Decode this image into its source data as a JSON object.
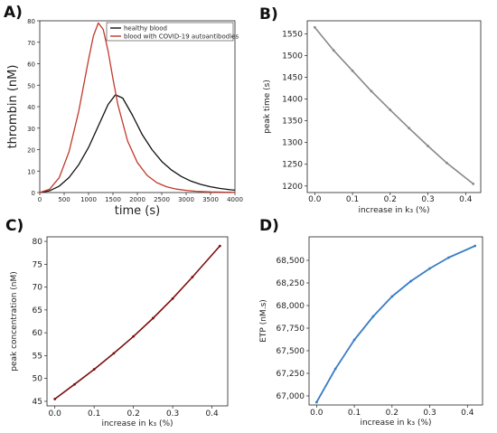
{
  "chart_data": [
    {
      "panel": "A)",
      "type": "line",
      "xlabel": "time (s)",
      "ylabel": "thrombin (nM)",
      "xlim": [
        0,
        4000
      ],
      "ylim": [
        0,
        80
      ],
      "xticks": [
        0,
        500,
        1000,
        1500,
        2000,
        2500,
        3000,
        3500,
        4000
      ],
      "yticks": [
        0,
        10,
        20,
        30,
        40,
        50,
        60,
        70,
        80
      ],
      "legend_position": "top-right",
      "series": [
        {
          "name": "healthy blood",
          "color": "#111111",
          "x": [
            0,
            200,
            400,
            600,
            800,
            1000,
            1200,
            1400,
            1550,
            1700,
            1900,
            2100,
            2300,
            2500,
            2700,
            2900,
            3100,
            3300,
            3500,
            3700,
            3900,
            4000
          ],
          "y": [
            0,
            0.8,
            3,
            7,
            13,
            21,
            31,
            41,
            45.5,
            44,
            36,
            27,
            20,
            14.5,
            10.5,
            7.5,
            5.3,
            3.8,
            2.7,
            1.9,
            1.3,
            1.1
          ]
        },
        {
          "name": "blood with COVID-19 autoantibodies",
          "color": "#c0392b",
          "x": [
            0,
            200,
            400,
            600,
            800,
            1000,
            1100,
            1200,
            1300,
            1400,
            1500,
            1600,
            1800,
            2000,
            2200,
            2400,
            2600,
            2800,
            3000,
            3200,
            3500,
            3800,
            4000
          ],
          "y": [
            0,
            1.5,
            7,
            19,
            38,
            62,
            73,
            79,
            76,
            66,
            53,
            41,
            24,
            14,
            8,
            4.6,
            2.7,
            1.6,
            1,
            0.6,
            0.3,
            0.15,
            0.1
          ]
        }
      ]
    },
    {
      "panel": "B)",
      "type": "line",
      "xlabel": "increase in k₃ (%)",
      "ylabel": "peak time (s)",
      "xlim": [
        -0.02,
        0.44
      ],
      "ylim": [
        1185,
        1580
      ],
      "xticks": [
        0.0,
        0.1,
        0.2,
        0.3,
        0.4
      ],
      "yticks": [
        1200,
        1250,
        1300,
        1350,
        1400,
        1450,
        1500,
        1550
      ],
      "series": [
        {
          "color": "#888888",
          "x": [
            0,
            0.05,
            0.1,
            0.15,
            0.2,
            0.25,
            0.3,
            0.35,
            0.42
          ],
          "y": [
            1565,
            1512,
            1465,
            1418,
            1375,
            1333,
            1292,
            1253,
            1205
          ]
        }
      ]
    },
    {
      "panel": "C)",
      "type": "line",
      "xlabel": "increase in k₃ (%)",
      "ylabel": "peak concentration (nM)",
      "xlim": [
        -0.02,
        0.44
      ],
      "ylim": [
        44,
        81
      ],
      "xticks": [
        0.0,
        0.1,
        0.2,
        0.3,
        0.4
      ],
      "yticks": [
        45,
        50,
        55,
        60,
        65,
        70,
        75,
        80
      ],
      "series": [
        {
          "color": "#7b1010",
          "x": [
            0,
            0.05,
            0.1,
            0.15,
            0.2,
            0.25,
            0.3,
            0.35,
            0.42
          ],
          "y": [
            45.5,
            48.7,
            52,
            55.5,
            59.2,
            63.2,
            67.5,
            72.2,
            79
          ]
        }
      ]
    },
    {
      "panel": "D)",
      "type": "line",
      "xlabel": "increase in k₃ (%)",
      "ylabel": "ETP (nM.s)",
      "xlim": [
        -0.02,
        0.44
      ],
      "ylim": [
        66900,
        68760
      ],
      "xticks": [
        0.0,
        0.1,
        0.2,
        0.3,
        0.4
      ],
      "yticks": [
        67000,
        67250,
        67500,
        67750,
        68000,
        68250,
        68500
      ],
      "yticklabels": [
        "67,000",
        "67,250",
        "67,500",
        "67,750",
        "68,000",
        "68,250",
        "68,500"
      ],
      "series": [
        {
          "color": "#3a7dc4",
          "x": [
            0,
            0.05,
            0.1,
            0.15,
            0.2,
            0.25,
            0.3,
            0.35,
            0.42
          ],
          "y": [
            66930,
            67300,
            67620,
            67880,
            68100,
            68270,
            68410,
            68530,
            68660
          ]
        }
      ]
    }
  ]
}
